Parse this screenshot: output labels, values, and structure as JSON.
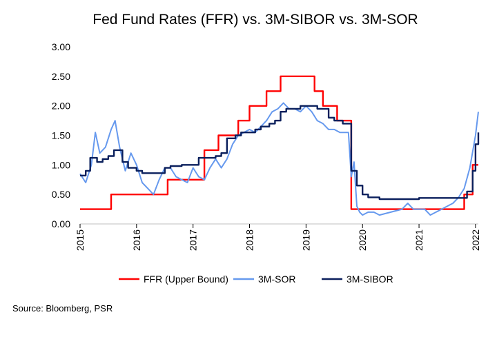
{
  "chart_data": {
    "type": "line",
    "title": "Fed Fund Rates (FFR) vs. 3M-SIBOR vs. 3M-SOR",
    "source": "Source: Bloomberg, PSR",
    "xlim": [
      2015,
      2022.05
    ],
    "ylim": [
      0,
      3
    ],
    "y_ticks": [
      "0.00",
      "0.50",
      "1.00",
      "1.50",
      "2.00",
      "2.50",
      "3.00"
    ],
    "x_ticks": [
      "2015",
      "2016",
      "2017",
      "2018",
      "2019",
      "2020",
      "2021",
      "2022"
    ],
    "grid": false,
    "legend": "bottom",
    "colors": {
      "ffr": "#ff0000",
      "sor": "#6699ee",
      "sibor": "#0a1f5c"
    },
    "series": [
      {
        "name": "FFR (Upper Bound)",
        "key": "ffr",
        "step": true,
        "x": [
          2015.0,
          2015.55,
          2016.55,
          2016.7,
          2017.2,
          2017.45,
          2017.8,
          2018.0,
          2018.3,
          2018.55,
          2019.15,
          2019.3,
          2019.55,
          2019.7,
          2019.8,
          2019.85,
          2020.0,
          2020.15,
          2021.8,
          2021.95,
          2022.05
        ],
        "values": [
          0.25,
          0.5,
          0.75,
          0.75,
          1.25,
          1.5,
          1.75,
          2.0,
          2.25,
          2.5,
          2.25,
          2.0,
          1.75,
          1.75,
          0.25,
          0.25,
          0.25,
          0.25,
          0.5,
          1.0,
          1.0
        ]
      },
      {
        "name": "3M-SOR",
        "key": "sor",
        "step": false,
        "x": [
          2015.0,
          2015.1,
          2015.2,
          2015.27,
          2015.35,
          2015.45,
          2015.55,
          2015.62,
          2015.7,
          2015.8,
          2015.9,
          2016.0,
          2016.1,
          2016.2,
          2016.3,
          2016.4,
          2016.5,
          2016.6,
          2016.7,
          2016.8,
          2016.9,
          2017.0,
          2017.1,
          2017.2,
          2017.3,
          2017.4,
          2017.5,
          2017.6,
          2017.7,
          2017.8,
          2017.9,
          2018.0,
          2018.1,
          2018.2,
          2018.3,
          2018.4,
          2018.5,
          2018.6,
          2018.7,
          2018.8,
          2018.9,
          2019.0,
          2019.1,
          2019.2,
          2019.3,
          2019.4,
          2019.5,
          2019.6,
          2019.7,
          2019.75,
          2019.8,
          2019.85,
          2019.9,
          2019.95,
          2020.0,
          2020.1,
          2020.2,
          2020.3,
          2020.5,
          2020.7,
          2020.8,
          2020.9,
          2021.0,
          2021.1,
          2021.2,
          2021.3,
          2021.4,
          2021.5,
          2021.6,
          2021.7,
          2021.8,
          2021.9,
          2022.0,
          2022.05
        ],
        "values": [
          0.85,
          0.7,
          1.0,
          1.55,
          1.2,
          1.3,
          1.6,
          1.75,
          1.3,
          0.9,
          1.2,
          1.0,
          0.7,
          0.6,
          0.5,
          0.75,
          0.95,
          0.95,
          0.8,
          0.75,
          0.7,
          0.95,
          0.8,
          0.75,
          0.95,
          1.1,
          0.95,
          1.1,
          1.35,
          1.5,
          1.55,
          1.6,
          1.55,
          1.65,
          1.75,
          1.9,
          1.95,
          2.05,
          1.95,
          1.95,
          1.9,
          2.0,
          1.9,
          1.75,
          1.7,
          1.6,
          1.6,
          1.55,
          1.55,
          1.55,
          0.8,
          1.05,
          0.3,
          0.2,
          0.15,
          0.2,
          0.2,
          0.15,
          0.2,
          0.25,
          0.35,
          0.25,
          0.25,
          0.25,
          0.15,
          0.2,
          0.25,
          0.3,
          0.35,
          0.45,
          0.6,
          0.95,
          1.5,
          1.9
        ]
      },
      {
        "name": "3M-SIBOR",
        "key": "sibor",
        "step": true,
        "x": [
          2015.0,
          2015.1,
          2015.18,
          2015.3,
          2015.4,
          2015.5,
          2015.6,
          2015.75,
          2015.85,
          2016.0,
          2016.1,
          2016.5,
          2016.6,
          2016.8,
          2017.0,
          2017.1,
          2017.4,
          2017.5,
          2017.6,
          2017.75,
          2017.85,
          2018.0,
          2018.1,
          2018.2,
          2018.35,
          2018.45,
          2018.55,
          2018.65,
          2018.8,
          2018.9,
          2019.2,
          2019.4,
          2019.5,
          2019.65,
          2019.8,
          2019.9,
          2020.0,
          2020.1,
          2020.3,
          2020.5,
          2020.75,
          2021.0,
          2021.5,
          2021.75,
          2021.85,
          2021.95,
          2022.0,
          2022.05
        ],
        "values": [
          0.82,
          0.9,
          1.12,
          1.05,
          1.1,
          1.15,
          1.25,
          1.05,
          0.95,
          0.9,
          0.86,
          0.95,
          0.98,
          1.0,
          1.0,
          1.12,
          1.15,
          1.2,
          1.45,
          1.5,
          1.55,
          1.55,
          1.6,
          1.65,
          1.7,
          1.75,
          1.9,
          1.95,
          1.95,
          2.0,
          1.95,
          1.8,
          1.75,
          1.7,
          0.9,
          0.65,
          0.5,
          0.45,
          0.42,
          0.42,
          0.42,
          0.44,
          0.44,
          0.44,
          0.55,
          0.9,
          1.35,
          1.55
        ]
      }
    ]
  }
}
